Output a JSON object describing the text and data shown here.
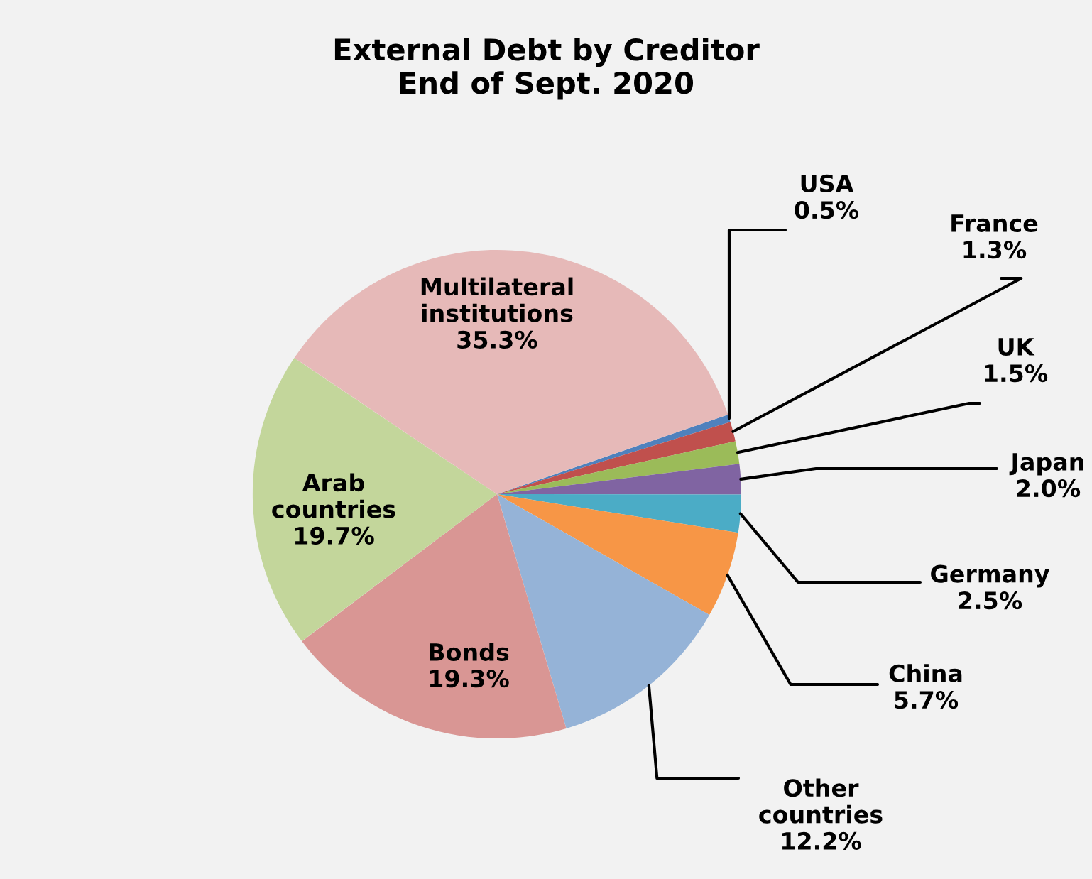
{
  "chart_data": {
    "type": "pie",
    "title": "External Debt by Creditor\nEnd of Sept. 2020",
    "categories": [
      "USA",
      "France",
      "UK",
      "Japan",
      "Germany",
      "China",
      "Other countries",
      "Bonds",
      "Arab countries",
      "Multilateral institutions"
    ],
    "values": [
      0.5,
      1.3,
      1.5,
      2.0,
      2.5,
      5.7,
      12.2,
      19.3,
      19.7,
      35.3
    ],
    "colors": [
      "#4f81bd",
      "#c0504d",
      "#9bbb59",
      "#8064a2",
      "#4bacc6",
      "#f79646",
      "#95b3d7",
      "#d99694",
      "#c3d69b",
      "#e6b9b8"
    ],
    "value_labels": [
      "0.5%",
      "1.3%",
      "1.5%",
      "2.0%",
      "2.5%",
      "5.7%",
      "12.2%",
      "19.3%",
      "19.7%",
      "35.3%"
    ],
    "legend": false
  }
}
